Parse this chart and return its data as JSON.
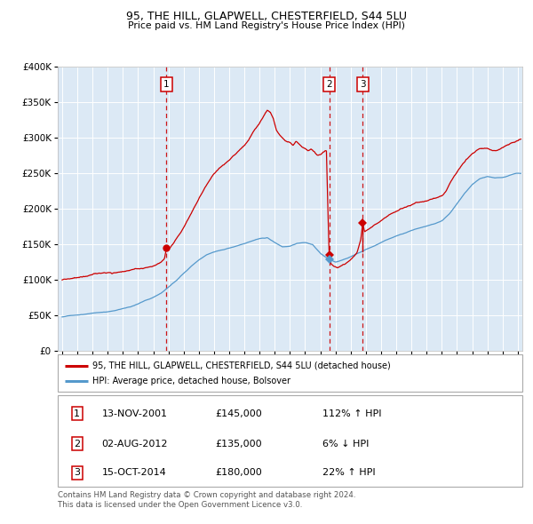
{
  "title1": "95, THE HILL, GLAPWELL, CHESTERFIELD, S44 5LU",
  "title2": "Price paid vs. HM Land Registry's House Price Index (HPI)",
  "legend_red": "95, THE HILL, GLAPWELL, CHESTERFIELD, S44 5LU (detached house)",
  "legend_blue": "HPI: Average price, detached house, Bolsover",
  "transactions": [
    {
      "num": "1",
      "date": "13-NOV-2001",
      "year": 2001.87,
      "price": 145000,
      "pct": "112% ↑ HPI"
    },
    {
      "num": "2",
      "date": "02-AUG-2012",
      "year": 2012.58,
      "price": 135000,
      "pct": "6% ↓ HPI"
    },
    {
      "num": "3",
      "date": "15-OCT-2014",
      "year": 2014.79,
      "price": 180000,
      "pct": "22% ↑ HPI"
    }
  ],
  "footnote1": "Contains HM Land Registry data © Crown copyright and database right 2024.",
  "footnote2": "This data is licensed under the Open Government Licence v3.0.",
  "ylim": [
    0,
    400000
  ],
  "xlim_start": 1994.7,
  "xlim_end": 2025.3,
  "bg_color": "#dce9f5",
  "red_color": "#cc0000",
  "blue_color": "#5599cc",
  "grid_color": "#ffffff",
  "outer_bg": "#f0f0f0"
}
